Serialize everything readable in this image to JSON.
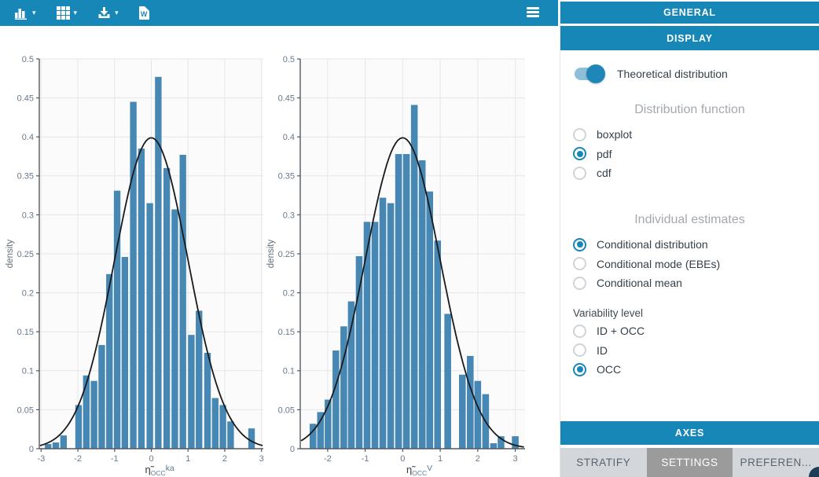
{
  "toolbar": {
    "word_badge": "W",
    "buttons": [
      "chart-type",
      "layout-grid",
      "export-download",
      "word-report"
    ]
  },
  "sidebar": {
    "general_header": "GENERAL",
    "display_header": "DISPLAY",
    "axes_header": "AXES",
    "toggle": {
      "label": "Theoretical distribution",
      "on": true
    },
    "distribution_function": {
      "heading": "Distribution function",
      "options": [
        "boxplot",
        "pdf",
        "cdf"
      ],
      "selected_index": 1
    },
    "individual_estimates": {
      "heading": "Individual estimates",
      "options": [
        "Conditional distribution",
        "Conditional mode (EBEs)",
        "Conditional mean"
      ],
      "selected_index": 0
    },
    "variability_level": {
      "heading": "Variability level",
      "options": [
        "ID + OCC",
        "ID",
        "OCC"
      ],
      "selected_index": 2
    },
    "tabs": [
      {
        "label": "STRATIFY",
        "active": false
      },
      {
        "label": "SETTINGS",
        "active": true
      },
      {
        "label": "PREFEREN...",
        "active": false
      }
    ]
  },
  "chart_data": [
    {
      "type": "bar",
      "subtype": "histogram_with_normal_pdf_overlay",
      "title": "",
      "xlabel": {
        "eta": "η̃",
        "sub": "OCC",
        "param": "ka"
      },
      "ylabel": "density",
      "xlim": [
        -3.05,
        3.05
      ],
      "ylim": [
        0,
        0.5
      ],
      "xticks": [
        -3,
        -2,
        -1,
        0,
        1,
        2,
        3
      ],
      "yticks": [
        0,
        0.05,
        0.1,
        0.15,
        0.2,
        0.25,
        0.3,
        0.35,
        0.4,
        0.45,
        0.5
      ],
      "bin_width": 0.2,
      "grid": true,
      "bars": [
        [
          -2.81,
          0.006
        ],
        [
          -2.6,
          0.008
        ],
        [
          -2.39,
          0.017
        ],
        [
          -1.98,
          0.056
        ],
        [
          -1.77,
          0.094
        ],
        [
          -1.56,
          0.087
        ],
        [
          -1.35,
          0.133
        ],
        [
          -1.14,
          0.224
        ],
        [
          -0.93,
          0.331
        ],
        [
          -0.72,
          0.246
        ],
        [
          -0.49,
          0.445
        ],
        [
          -0.27,
          0.385
        ],
        [
          -0.04,
          0.315
        ],
        [
          0.19,
          0.477
        ],
        [
          0.42,
          0.36
        ],
        [
          0.64,
          0.307
        ],
        [
          0.86,
          0.377
        ],
        [
          1.09,
          0.146
        ],
        [
          1.3,
          0.177
        ],
        [
          1.53,
          0.123
        ],
        [
          1.74,
          0.065
        ],
        [
          1.95,
          0.056
        ],
        [
          2.16,
          0.035
        ],
        [
          2.73,
          0.026
        ]
      ],
      "curve": {
        "type": "normal_pdf",
        "mean": 0,
        "sd": 1,
        "peak": 0.3989
      }
    },
    {
      "type": "bar",
      "subtype": "histogram_with_normal_pdf_overlay",
      "title": "",
      "xlabel": {
        "eta": "η̃",
        "sub": "OCC",
        "param": "V"
      },
      "ylabel": "density",
      "xlim": [
        -2.73,
        3.26
      ],
      "ylim": [
        0,
        0.5
      ],
      "xticks": [
        -2,
        -1,
        0,
        1,
        2,
        3
      ],
      "yticks": [
        0,
        0.05,
        0.1,
        0.15,
        0.2,
        0.25,
        0.3,
        0.35,
        0.4,
        0.45,
        0.5
      ],
      "bin_width": 0.2,
      "grid": true,
      "bars": [
        [
          -2.39,
          0.032
        ],
        [
          -2.19,
          0.047
        ],
        [
          -1.99,
          0.063
        ],
        [
          -1.78,
          0.126
        ],
        [
          -1.57,
          0.157
        ],
        [
          -1.37,
          0.189
        ],
        [
          -1.16,
          0.247
        ],
        [
          -0.95,
          0.291
        ],
        [
          -0.74,
          0.291
        ],
        [
          -0.53,
          0.322
        ],
        [
          -0.32,
          0.315
        ],
        [
          -0.11,
          0.378
        ],
        [
          0.1,
          0.378
        ],
        [
          0.31,
          0.441
        ],
        [
          0.52,
          0.37
        ],
        [
          0.72,
          0.33
        ],
        [
          0.93,
          0.267
        ],
        [
          1.2,
          0.173
        ],
        [
          1.59,
          0.095
        ],
        [
          1.8,
          0.119
        ],
        [
          2.0,
          0.087
        ],
        [
          2.21,
          0.07
        ],
        [
          2.42,
          0.007
        ],
        [
          2.62,
          0.016
        ],
        [
          3.0,
          0.016
        ]
      ],
      "curve": {
        "type": "normal_pdf",
        "mean": 0,
        "sd": 1,
        "peak": 0.3989
      }
    }
  ],
  "colors": {
    "accent_teal": "#1787b8",
    "bar_fill": "#4787b4",
    "curve": "#1a1a1a",
    "plot_bg": "#fbfbfc",
    "grid_line": "#e5e6e8",
    "axis_line": "#55595e",
    "tick_label": "#68798c",
    "tab_bar_bg": "#d3d6da",
    "tab_active_bg": "#9b9b9b"
  }
}
